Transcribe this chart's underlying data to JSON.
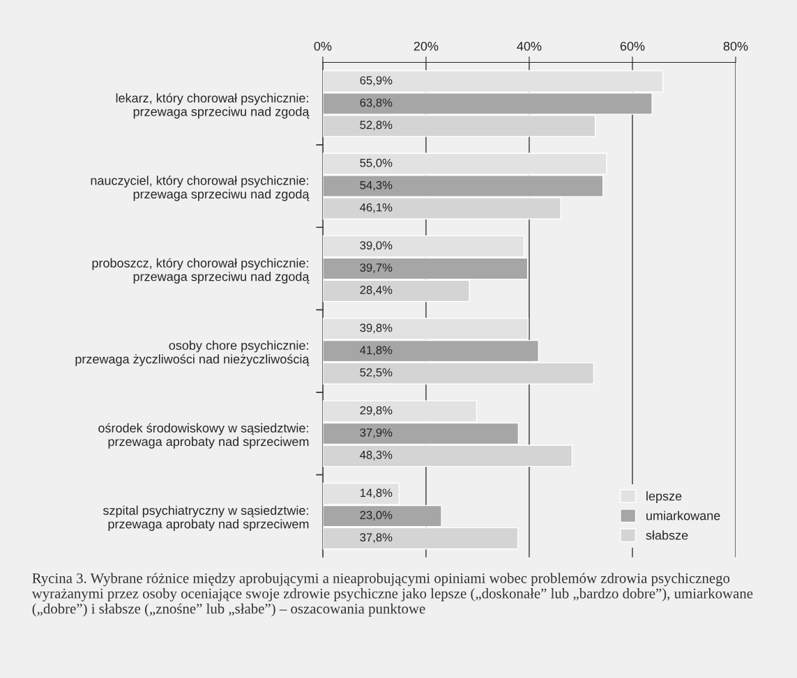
{
  "chart_data": {
    "type": "bar",
    "orientation": "horizontal",
    "categories": [
      "lekarz, który chorował psychicznie:\nprzewaga sprzeciwu nad zgodą",
      "nauczyciel, który chorował psychicznie:\nprzewaga sprzeciwu nad zgodą",
      "proboszcz, który chorował psychicznie:\nprzewaga sprzeciwu nad zgodą",
      "osoby chore psychicznie:\nprzewaga życzliwości nad nieżyczliwością",
      "ośrodek środowiskowy w sąsiedztwie:\nprzewaga aprobaty nad sprzeciwem",
      "szpital psychiatryczny w sąsiedztwie:\nprzewaga aprobaty nad sprzeciwem"
    ],
    "series": [
      {
        "name": "lepsze",
        "color": "#e2e2e2",
        "values": [
          65.9,
          55.0,
          39.0,
          39.8,
          29.8,
          14.8
        ],
        "value_labels": [
          "65,9%",
          "55,0%",
          "39,0%",
          "39,8%",
          "29,8%",
          "14,8%"
        ]
      },
      {
        "name": "umiarkowane",
        "color": "#a6a6a6",
        "values": [
          63.8,
          54.3,
          39.7,
          41.8,
          37.9,
          23.0
        ],
        "value_labels": [
          "63,8%",
          "54,3%",
          "39,7%",
          "41,8%",
          "37,9%",
          "23,0%"
        ]
      },
      {
        "name": "słabsze",
        "color": "#d4d4d4",
        "values": [
          52.8,
          46.1,
          28.4,
          52.5,
          48.3,
          37.8
        ],
        "value_labels": [
          "52,8%",
          "46,1%",
          "28,4%",
          "52,5%",
          "48,3%",
          "37,8%"
        ]
      }
    ],
    "xlim": [
      0,
      80
    ],
    "xticks": [
      {
        "value": 0,
        "label": "0%"
      },
      {
        "value": 20,
        "label": "20%"
      },
      {
        "value": 40,
        "label": "40%"
      },
      {
        "value": 60,
        "label": "60%"
      },
      {
        "value": 80,
        "label": "80%"
      }
    ],
    "grid": "x",
    "legend": "bottom right",
    "annotations": [
      "Rycina 3. Wybrane różnice między aprobującymi a nieaprobującymi opiniami wobec problemów zdrowia psychicznego wyrażanymi przez osoby oceniające swoje zdrowie psychiczne jako lepsze („doskonałe” lub „bardzo dobre”), umiarkowane („dobre”) i słabsze („znośne” lub „słabe”) – oszacowania punktowe"
    ]
  }
}
